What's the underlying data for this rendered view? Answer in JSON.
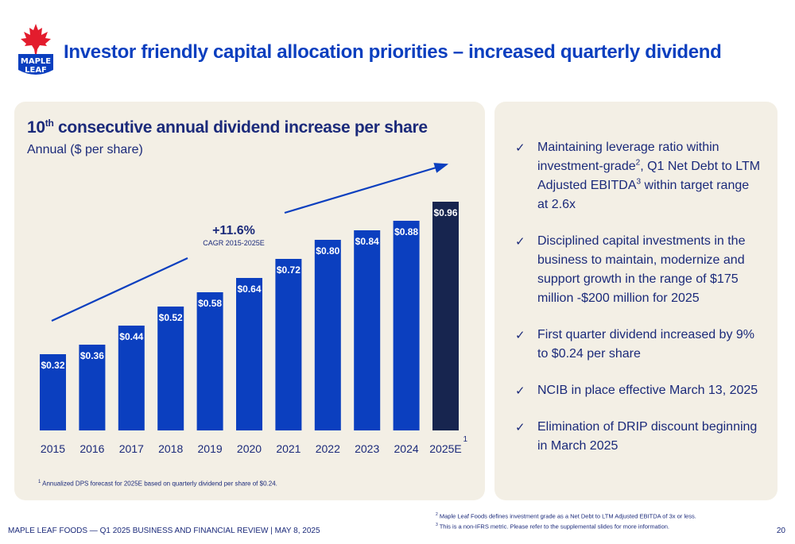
{
  "header": {
    "logo_line1": "MAPLE",
    "logo_line2": "LEAF",
    "title": "Investor friendly capital allocation priorities  – increased quarterly dividend"
  },
  "chart_header": {
    "title_prefix": "10",
    "title_sup": "th",
    "title_rest": " consecutive annual dividend increase per share",
    "subtitle": "Annual ($ per share)"
  },
  "chart_data": {
    "type": "bar",
    "categories": [
      "2015",
      "2016",
      "2017",
      "2018",
      "2019",
      "2020",
      "2021",
      "2022",
      "2023",
      "2024",
      "2025E"
    ],
    "values": [
      0.32,
      0.36,
      0.44,
      0.52,
      0.58,
      0.64,
      0.72,
      0.8,
      0.84,
      0.88,
      0.96
    ],
    "labels": [
      "$0.32",
      "$0.36",
      "$0.44",
      "$0.52",
      "$0.58",
      "$0.64",
      "$0.72",
      "$0.80",
      "$0.84",
      "$0.88",
      "$0.96"
    ],
    "ylim": [
      0,
      1.0
    ],
    "colors": {
      "bar": "#0b3fbf",
      "highlight": "#17254f",
      "arrow": "#0b3fbf"
    },
    "highlight_index": 10,
    "annotation": {
      "value": "+11.6%",
      "label": "CAGR 2015-2025E"
    },
    "last_tick_superscript": "1",
    "grid": false
  },
  "chart_footnote": {
    "sup": "1",
    "text": " Annualized DPS forecast for 2025E based on quarterly dividend per share of $0.24."
  },
  "bullets": [
    {
      "check": "✓",
      "parts": [
        "Maintaining leverage ratio within investment-grade",
        "2",
        ", Q1 Net Debt to LTM Adjusted EBITDA",
        "3",
        " within target range at 2.6x"
      ]
    },
    {
      "check": "✓",
      "text": "Disciplined capital investments in the business to maintain, modernize and support growth in the range of $175 million -$200 million for 2025"
    },
    {
      "check": "✓",
      "text": "First quarter dividend increased by 9% to $0.24 per share"
    },
    {
      "check": "✓",
      "text": "NCIB in place effective March 13, 2025"
    },
    {
      "check": "✓",
      "text": "Elimination of DRIP discount beginning in March 2025"
    }
  ],
  "footnotes": {
    "n2_sup": "2",
    "n2": " Maple Leaf Foods defines investment grade as a Net Debt to LTM Adjusted EBITDA of 3x or less.",
    "n3_sup": "3",
    "n3": " This is a non-IFRS metric. Please refer to the supplemental slides for more information."
  },
  "footer": {
    "text": "MAPLE LEAF FOODS — Q1 2025 BUSINESS AND FINANCIAL REVIEW |  MAY 8, 2025",
    "page": "20"
  },
  "icons": {
    "logo": "maple-leaf-logo",
    "bullet": "check-icon",
    "trend": "trend-arrow"
  }
}
